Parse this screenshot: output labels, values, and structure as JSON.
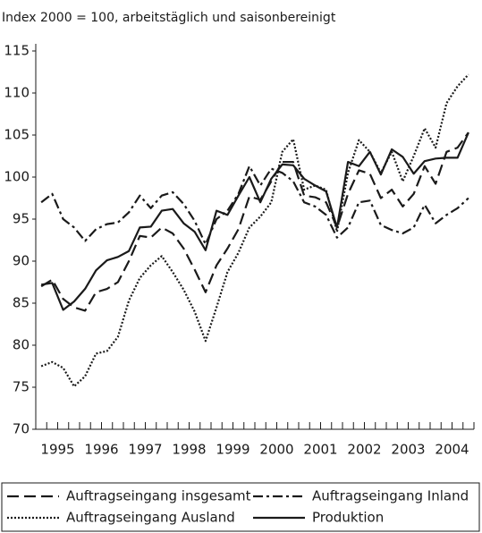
{
  "chart_data": {
    "type": "line",
    "subtitle": "Index 2000 = 100, arbeitstäglich und saisonbereinigt",
    "x": [
      1995.125,
      1995.375,
      1995.625,
      1995.875,
      1996.125,
      1996.375,
      1996.625,
      1996.875,
      1997.125,
      1997.375,
      1997.625,
      1997.875,
      1998.125,
      1998.375,
      1998.625,
      1998.875,
      1999.125,
      1999.375,
      1999.625,
      1999.875,
      2000.125,
      2000.375,
      2000.625,
      2000.875,
      2001.125,
      2001.375,
      2001.625,
      2001.875,
      2002.125,
      2002.375,
      2002.625,
      2002.875,
      2003.125,
      2003.375,
      2003.625,
      2003.875,
      2004.125,
      2004.375,
      2004.625,
      2004.875
    ],
    "xlim": [
      1995,
      2005
    ],
    "xticks": [
      {
        "value": 1995.5,
        "label": "1995"
      },
      {
        "value": 1996.5,
        "label": "1996"
      },
      {
        "value": 1997.5,
        "label": "1997"
      },
      {
        "value": 1998.5,
        "label": "1998"
      },
      {
        "value": 1999.5,
        "label": "1999"
      },
      {
        "value": 2000.5,
        "label": "2000"
      },
      {
        "value": 2001.5,
        "label": "2001"
      },
      {
        "value": 2002.5,
        "label": "2002"
      },
      {
        "value": 2003.5,
        "label": "2003"
      },
      {
        "value": 2004.5,
        "label": "2004"
      }
    ],
    "xminor": 0.25,
    "ylim": [
      70,
      115
    ],
    "yticks": [
      70,
      75,
      80,
      85,
      90,
      95,
      100,
      105,
      110,
      115
    ],
    "series": [
      {
        "name": "Auftragseingang insgesamt",
        "color": "#1a1a1a",
        "dash": "13 6",
        "values": [
          87.0,
          87.8,
          85.5,
          84.5,
          84.1,
          86.3,
          86.7,
          87.5,
          90.0,
          93.0,
          92.8,
          94.0,
          93.3,
          91.5,
          89.0,
          86.3,
          89.5,
          91.5,
          93.8,
          97.7,
          97.3,
          99.5,
          101.8,
          101.8,
          97.8,
          97.6,
          97.0,
          94.0,
          98.0,
          100.8,
          100.4,
          97.5,
          98.5,
          96.5,
          98.0,
          101.3,
          99.2,
          103.0,
          103.5,
          105.3
        ]
      },
      {
        "name": "Auftragseingang Inland",
        "color": "#1a1a1a",
        "dash": "11 4 3 4",
        "values": [
          97.0,
          98.0,
          95.0,
          94.0,
          92.4,
          93.8,
          94.4,
          94.6,
          95.8,
          97.8,
          96.3,
          97.8,
          98.2,
          96.8,
          94.8,
          92.0,
          95.0,
          96.0,
          98.0,
          101.3,
          99.0,
          101.0,
          100.5,
          99.5,
          97.0,
          96.5,
          95.5,
          92.8,
          94.0,
          97.0,
          97.2,
          94.3,
          93.7,
          93.3,
          94.0,
          96.7,
          94.5,
          95.5,
          96.3,
          97.5
        ]
      },
      {
        "name": "Auftragseingang Ausland",
        "color": "#1a1a1a",
        "dash": "2 2",
        "values": [
          77.5,
          78.0,
          77.3,
          75.1,
          76.3,
          79.0,
          79.3,
          81.0,
          85.3,
          88.0,
          89.5,
          90.6,
          88.7,
          86.6,
          84.0,
          80.5,
          84.5,
          88.7,
          91.0,
          94.0,
          95.3,
          97.0,
          103.0,
          104.5,
          98.5,
          99.0,
          98.5,
          93.5,
          100.5,
          104.4,
          103.0,
          100.5,
          103.0,
          99.5,
          102.5,
          105.8,
          103.5,
          108.8,
          110.8,
          112.2
        ]
      },
      {
        "name": "Produktion",
        "color": "#1a1a1a",
        "dash": "none",
        "values": [
          87.2,
          87.4,
          84.2,
          85.2,
          86.7,
          88.9,
          90.1,
          90.5,
          91.2,
          94.0,
          94.1,
          96.0,
          96.2,
          94.5,
          93.5,
          91.3,
          96.0,
          95.5,
          97.8,
          100.0,
          97.0,
          99.8,
          101.5,
          101.4,
          99.8,
          99.0,
          98.3,
          94.0,
          101.8,
          101.3,
          103.0,
          100.3,
          103.3,
          102.4,
          100.4,
          101.9,
          102.2,
          102.3,
          102.3,
          105.3
        ]
      }
    ]
  }
}
